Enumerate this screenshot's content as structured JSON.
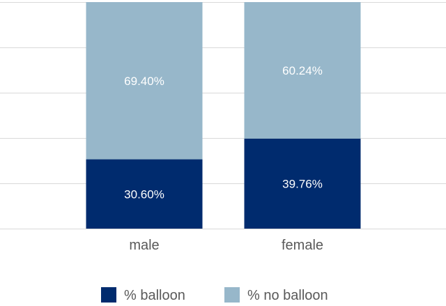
{
  "chart_data": {
    "type": "bar",
    "stacked": true,
    "categories": [
      "male",
      "female"
    ],
    "series": [
      {
        "name": "% balloon",
        "values": [
          30.6,
          39.76
        ],
        "labels": [
          "30.60%",
          "39.76%"
        ],
        "color": "#002b6e"
      },
      {
        "name": "% no balloon",
        "values": [
          69.4,
          60.24
        ],
        "labels": [
          "69.40%",
          "60.24%"
        ],
        "color": "#97b7ca"
      }
    ],
    "ylim": [
      0,
      100
    ],
    "grid": true,
    "legend": "bottom"
  }
}
